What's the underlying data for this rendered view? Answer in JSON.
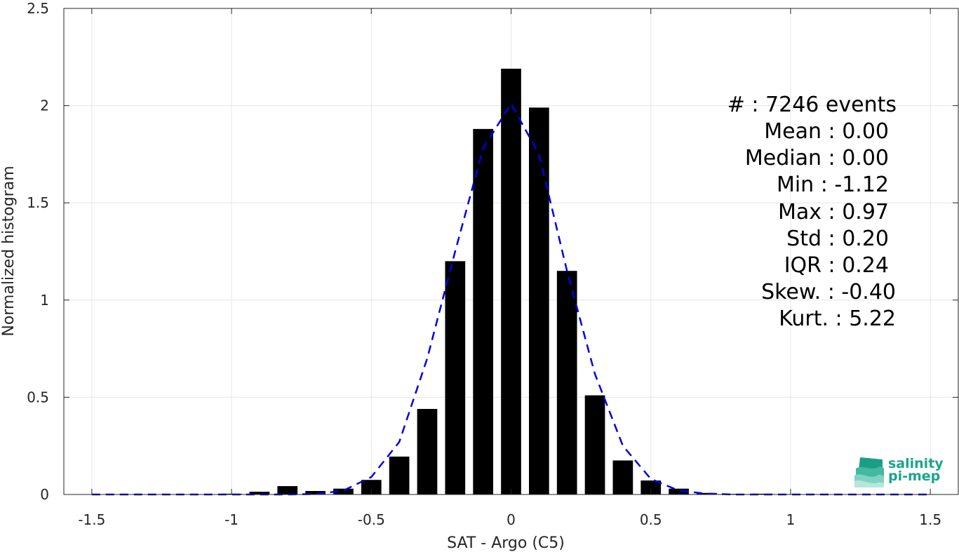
{
  "chart_data": {
    "type": "bar",
    "xlabel": "SAT - Argo (C5)",
    "ylabel": "Normalized histogram",
    "xlim": [
      -1.6,
      1.6
    ],
    "ylim": [
      0,
      2.5
    ],
    "xticks": [
      -1.5,
      -1,
      -0.5,
      0,
      0.5,
      1,
      1.5
    ],
    "xtick_labels": [
      "-1.5",
      "-1",
      "-0.5",
      "0",
      "0.5",
      "1",
      "1.5"
    ],
    "yticks": [
      0,
      0.5,
      1,
      1.5,
      2,
      2.5
    ],
    "ytick_labels": [
      "0",
      "0.5",
      "1",
      "1.5",
      "2",
      "2.5"
    ],
    "grid": true,
    "bar_color": "#000000",
    "series": [
      {
        "type": "bar",
        "x": [
          -1.5,
          -1.4,
          -1.3,
          -1.2,
          -1.1,
          -1.0,
          -0.9,
          -0.8,
          -0.7,
          -0.6,
          -0.5,
          -0.4,
          -0.3,
          -0.2,
          -0.1,
          0.0,
          0.1,
          0.2,
          0.3,
          0.4,
          0.5,
          0.6,
          0.7,
          0.8,
          0.9,
          1.0,
          1.1,
          1.2,
          1.3,
          1.4,
          1.5
        ],
        "values": [
          0,
          0,
          0,
          0,
          0,
          0.004,
          0.014,
          0.043,
          0.018,
          0.03,
          0.075,
          0.195,
          0.44,
          1.2,
          1.88,
          2.19,
          1.99,
          1.15,
          0.51,
          0.175,
          0.072,
          0.03,
          0.008,
          0.003,
          0.004,
          0.002,
          0,
          0,
          0,
          0,
          0
        ]
      },
      {
        "type": "line",
        "style": "dashed",
        "color": "#0000e6",
        "x": [
          -1.5,
          -1.4,
          -1.3,
          -1.2,
          -1.1,
          -1.0,
          -0.9,
          -0.8,
          -0.7,
          -0.6,
          -0.5,
          -0.4,
          -0.3,
          -0.2,
          -0.1,
          0.0,
          0.1,
          0.2,
          0.3,
          0.4,
          0.5,
          0.6,
          0.7,
          0.8,
          0.9,
          1.0,
          1.1,
          1.2,
          1.3,
          1.4,
          1.5
        ],
        "values": [
          0,
          0,
          0,
          0,
          0,
          0,
          0,
          0,
          0.002,
          0.02,
          0.09,
          0.27,
          0.7,
          1.25,
          1.78,
          2.01,
          1.75,
          1.15,
          0.62,
          0.25,
          0.08,
          0.02,
          0.004,
          0,
          0,
          0,
          0,
          0,
          0,
          0,
          0
        ]
      }
    ]
  },
  "stats": {
    "events": "#  : 7246 events",
    "mean": "Mean : 0.00",
    "median": "Median : 0.00",
    "min": "Min : -1.12",
    "max": "Max : 0.97",
    "std": "Std : 0.20",
    "iqr": "IQR : 0.24",
    "skew": "Skew. : -0.40",
    "kurt": "Kurt. : 5.22"
  },
  "logo": {
    "line1": "salinity",
    "line2": "pi-mep"
  }
}
